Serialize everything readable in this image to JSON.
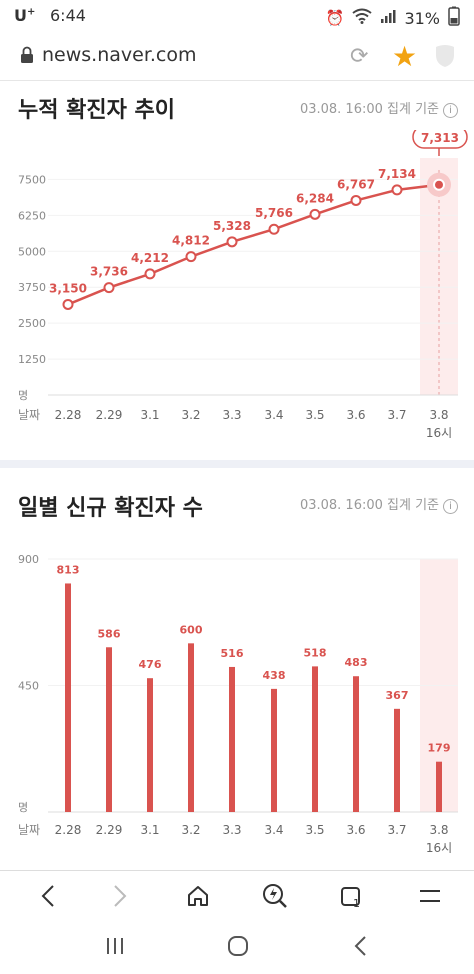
{
  "status": {
    "carrier": "U",
    "carrier_sup": "+",
    "time": "6:44",
    "battery": "31%"
  },
  "browser": {
    "url": "news.naver.com"
  },
  "cumulative": {
    "title": "누적 확진자 추이",
    "note": "03.08. 16:00 집계 기준",
    "unit_label": "명",
    "date_label": "날짜",
    "highlight_value": "7,313",
    "last_sublabel": "16시"
  },
  "daily": {
    "title": "일별 신규 확진자 수",
    "note": "03.08. 16:00 집계 기준",
    "unit_label": "명",
    "date_label": "날짜",
    "last_sublabel": "16시"
  },
  "chart_data": [
    {
      "type": "line",
      "title": "누적 확진자 추이",
      "categories": [
        "2.28",
        "2.29",
        "3.1",
        "3.2",
        "3.3",
        "3.4",
        "3.5",
        "3.6",
        "3.7",
        "3.8"
      ],
      "values": [
        3150,
        3736,
        4212,
        4812,
        5328,
        5766,
        6284,
        6767,
        7134,
        7313
      ],
      "data_labels": [
        "3,150",
        "3,736",
        "4,212",
        "4,812",
        "5,328",
        "5,766",
        "6,284",
        "6,767",
        "7,134",
        "7,313"
      ],
      "yticks": [
        "7500",
        "6250",
        "5000",
        "3750",
        "2500",
        "1250"
      ],
      "ytick_values": [
        7500,
        6250,
        5000,
        3750,
        2500,
        1250
      ],
      "ylim": [
        0,
        8000
      ],
      "color": "#d9534f"
    },
    {
      "type": "bar",
      "title": "일별 신규 확진자 수",
      "categories": [
        "2.28",
        "2.29",
        "3.1",
        "3.2",
        "3.3",
        "3.4",
        "3.5",
        "3.6",
        "3.7",
        "3.8"
      ],
      "values": [
        813,
        586,
        476,
        600,
        516,
        438,
        518,
        483,
        367,
        179
      ],
      "yticks": [
        "900",
        "450"
      ],
      "ytick_values": [
        900,
        450
      ],
      "ylim": [
        0,
        900
      ],
      "color": "#d9534f"
    }
  ]
}
